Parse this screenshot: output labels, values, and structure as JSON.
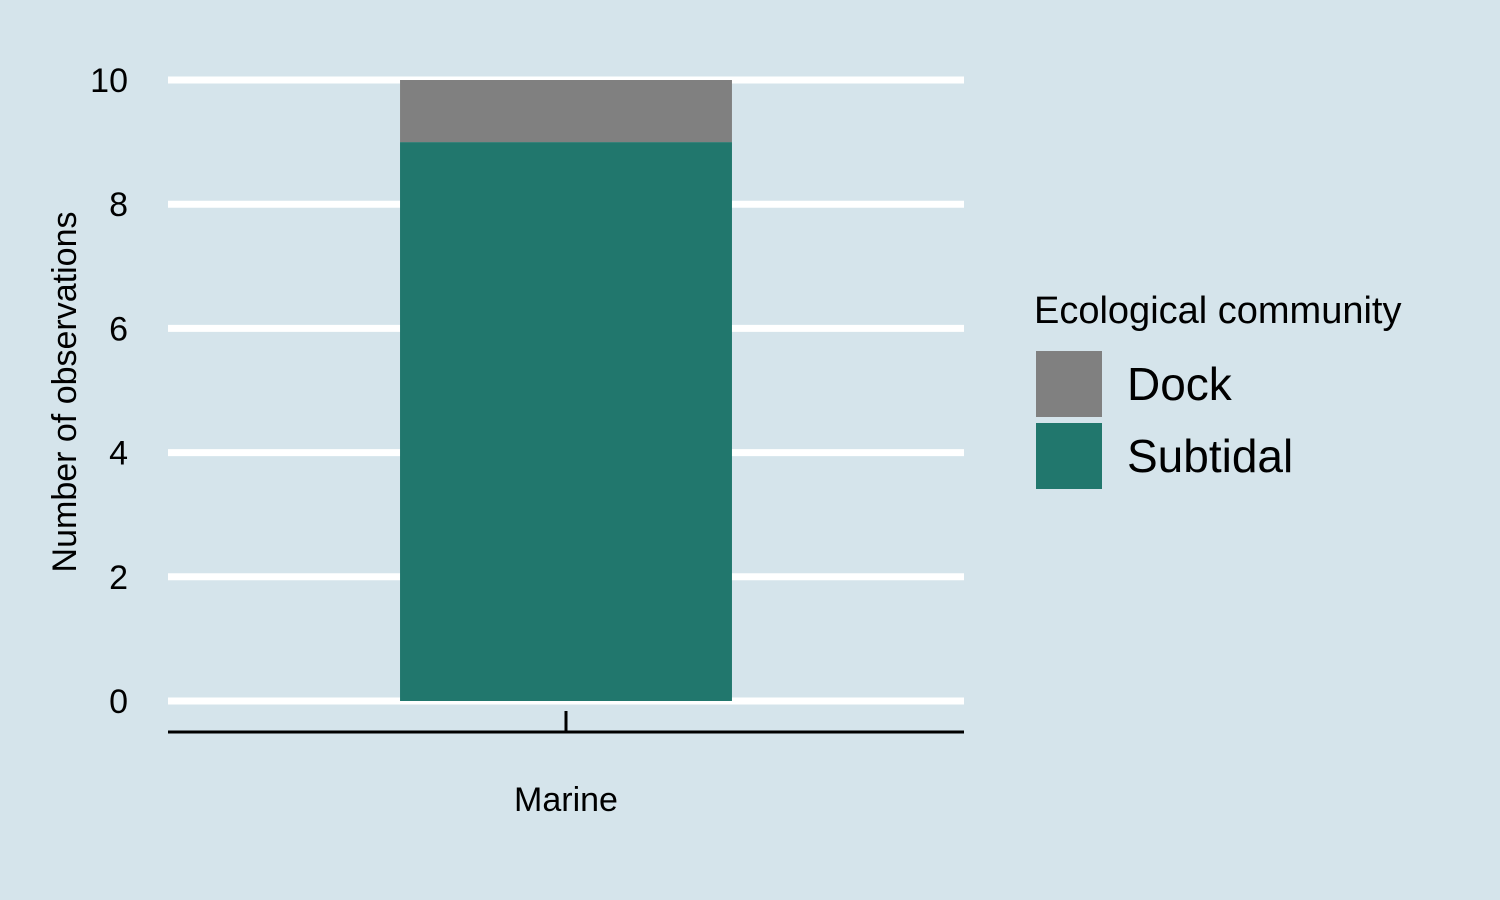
{
  "chart_data": {
    "type": "bar",
    "stacked": true,
    "categories": [
      "Marine"
    ],
    "series": [
      {
        "name": "Subtidal",
        "values": [
          9
        ],
        "color": "#21776d"
      },
      {
        "name": "Dock",
        "values": [
          1
        ],
        "color": "#808080"
      }
    ],
    "xlabel": "",
    "ylabel": "Number of observations",
    "ylim": [
      0,
      10
    ],
    "yticks": [
      0,
      2,
      4,
      6,
      8,
      10
    ],
    "grid": "horizontal",
    "legend": {
      "title": "Ecological community",
      "position": "right",
      "entries": [
        "Dock",
        "Subtidal"
      ]
    }
  },
  "colors": {
    "background": "#d5e4eb",
    "gridline": "#ffffff",
    "axis": "#000000"
  }
}
